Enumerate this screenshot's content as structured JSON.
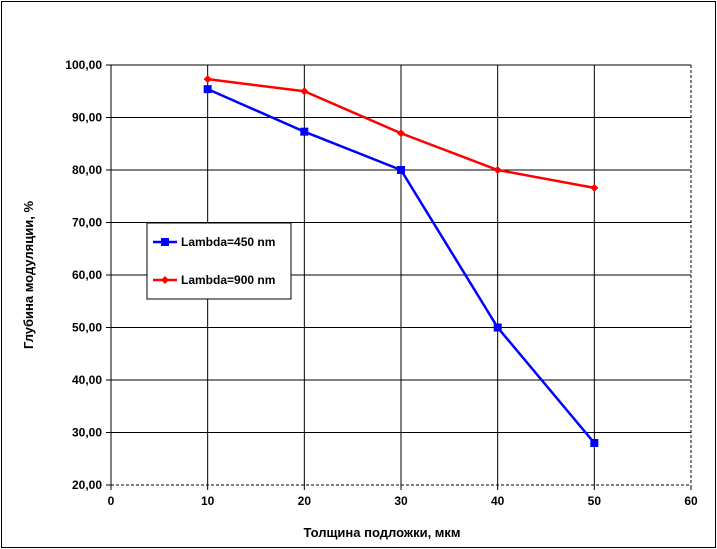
{
  "chart_data": {
    "type": "line",
    "title": "",
    "xlabel": "Толщина подложки, мкм",
    "ylabel": "Глубина модуляции, %",
    "xlim": [
      0,
      60
    ],
    "ylim": [
      20,
      100
    ],
    "x_ticks": [
      0,
      10,
      20,
      30,
      40,
      50,
      60
    ],
    "y_ticks": [
      20,
      30,
      40,
      50,
      60,
      70,
      80,
      90,
      100
    ],
    "x_tick_labels": [
      "0",
      "10",
      "20",
      "30",
      "40",
      "50",
      "60"
    ],
    "y_tick_labels": [
      "20,00",
      "30,00",
      "40,00",
      "50,00",
      "60,00",
      "70,00",
      "80,00",
      "90,00",
      "100,00"
    ],
    "grid": true,
    "legend_position": "left-middle",
    "series": [
      {
        "name": "Lambda=450 nm",
        "color": "#0000ff",
        "marker": "square",
        "x": [
          10,
          20,
          30,
          40,
          50
        ],
        "y": [
          95.4,
          87.3,
          80.0,
          50.0,
          28.0
        ]
      },
      {
        "name": "Lambda=900 nm",
        "color": "#ff0000",
        "marker": "diamond",
        "x": [
          10,
          20,
          30,
          40,
          50
        ],
        "y": [
          97.3,
          95.0,
          87.0,
          80.0,
          76.6
        ]
      }
    ]
  }
}
